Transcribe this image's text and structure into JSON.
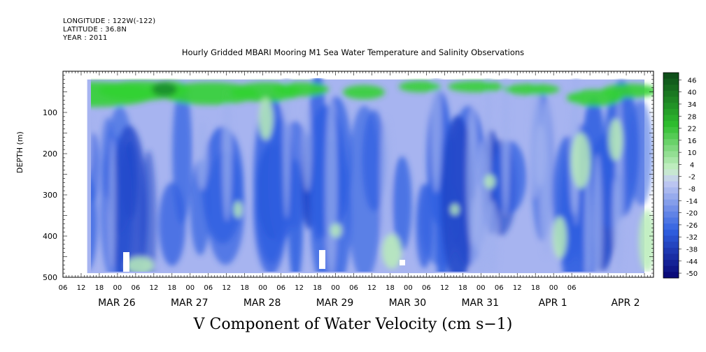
{
  "header": {
    "longitude": "LONGITUDE : 122W(-122)",
    "latitude": "LATITUDE : 36.8N",
    "year": "YEAR : 2011"
  },
  "title": "Hourly Gridded MBARI Mooring M1 Sea Water Temperature and Salinity Observations",
  "bottom_title": "V Component of Water Velocity (cm s−1)",
  "colors": {
    "strong_negative": "#0b0b8a",
    "negative": "#2f5fe0",
    "weak_negative": "#a7b4f0",
    "weak_positive": "#b8ecb8",
    "positive": "#33d133",
    "strong_positive": "#0f4f1a",
    "missing": "#ffffff"
  },
  "chart_data": {
    "type": "heatmap",
    "title": "Hourly Gridded MBARI Mooring M1 Sea Water Temperature and Salinity Observations",
    "xlabel": "",
    "ylabel": "DEPTH (m)",
    "variable": "V Component of Water Velocity (cm s−1)",
    "ylim": [
      500,
      0
    ],
    "data_depth_range": [
      20,
      490
    ],
    "y_ticks": [
      100,
      200,
      300,
      400,
      500
    ],
    "x_hour_ticks": [
      "06",
      "12",
      "18",
      "00",
      "06",
      "12",
      "18",
      "00",
      "06",
      "12",
      "18",
      "00",
      "06",
      "12",
      "18",
      "00",
      "06",
      "12",
      "18",
      "00",
      "06",
      "12",
      "18",
      "00",
      "06",
      "12",
      "18",
      "00",
      "06"
    ],
    "x_date_labels": [
      "MAR 26",
      "MAR 27",
      "MAR 28",
      "MAR 29",
      "MAR 30",
      "MAR 31",
      "APR 1",
      "APR 2"
    ],
    "x_range_hours": [
      "MAR 25 06:00",
      "APR 2 09:00"
    ],
    "data_time_range": [
      "MAR 25 14:00",
      "APR 2 06:00"
    ],
    "colorbar": {
      "levels": [
        -50,
        -44,
        -38,
        -32,
        -26,
        -20,
        -14,
        -8,
        -2,
        4,
        10,
        16,
        22,
        28,
        34,
        40,
        46
      ],
      "labels": [
        "46",
        "40",
        "34",
        "28",
        "22",
        "16",
        "10",
        "4",
        "-2",
        "-8",
        "-14",
        "-20",
        "-26",
        "-32",
        "-38",
        "-44",
        "-50"
      ]
    },
    "features": [
      {
        "description": "surface positive layer",
        "time": "MAR 25 14:00 - MAR 28 18:00",
        "depth": [
          20,
          80
        ],
        "value": 14
      },
      {
        "description": "deep negative core",
        "time": "MAR 29 12:00 - MAR 30 06:00",
        "depth": [
          250,
          400
        ],
        "value": -24
      },
      {
        "description": "bottom positive patch",
        "time": "APR 2 00:00 - APR 2 06:00",
        "depth": [
          300,
          450
        ],
        "value": 10
      }
    ]
  }
}
